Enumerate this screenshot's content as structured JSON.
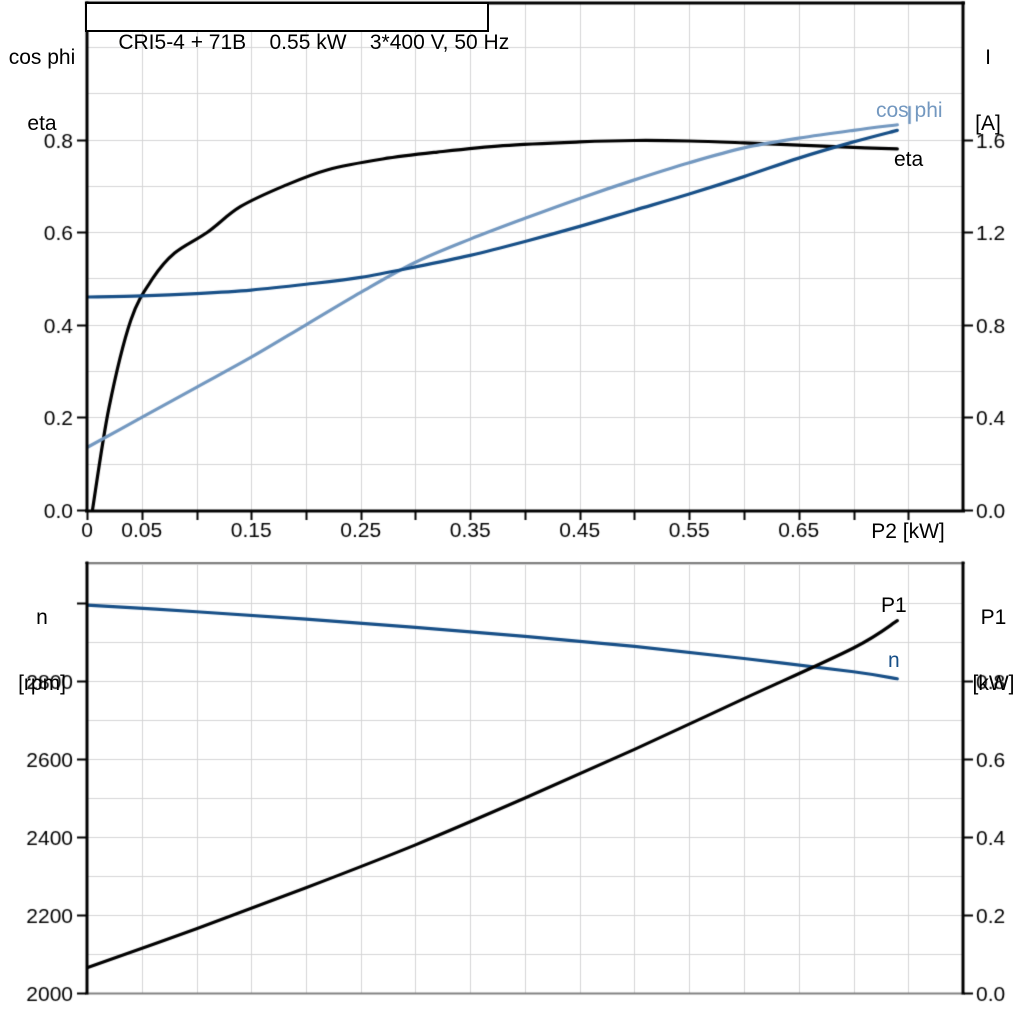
{
  "title_box": {
    "text": "CRI5-4 + 71B    0.55 kW    3*400 V, 50 Hz"
  },
  "colors": {
    "eta_curve": "#000000",
    "cos_phi_curve": "#7398c0",
    "current_curve": "#174f87",
    "n_curve": "#174f87",
    "p1_curve": "#000000",
    "grid": "#d4d4d6",
    "axis_black": "#000000",
    "axis_gray": "#808080",
    "text": "#000000"
  },
  "top_chart": {
    "y_left_title_line1": "cos phi",
    "y_left_title_line2": "eta",
    "y_right_title_line1": "I",
    "y_right_title_line2": "[A]",
    "x_axis_title": "P2 [kW]",
    "x_tick_labels": [
      "0",
      "0.05",
      "0.15",
      "0.25",
      "0.35",
      "0.45",
      "0.55",
      "0.65"
    ],
    "y_left_tick_labels": [
      "0.0",
      "0.2",
      "0.4",
      "0.6",
      "0.8"
    ],
    "y_right_tick_labels": [
      "0.0",
      "0.4",
      "0.8",
      "1.2",
      "1.6"
    ],
    "cos_phi_label": "cos phi",
    "eta_label": "eta"
  },
  "bottom_chart": {
    "y_left_title_line1": "n",
    "y_left_title_line2": "[rpm]",
    "y_right_title_line1": "P1",
    "y_right_title_line2": "[kW]",
    "y_left_tick_labels": [
      "2000",
      "2200",
      "2400",
      "2600",
      "2800"
    ],
    "y_right_tick_labels": [
      "0.0",
      "0.2",
      "0.4",
      "0.6",
      "0.8"
    ],
    "y_left_unlabeled_tick": 3000,
    "p1_label": "P1",
    "n_label": "n"
  },
  "chart_data": [
    {
      "type": "line",
      "title": "CRI5-4 + 71B 0.55 kW 3*400 V, 50 Hz",
      "xlabel": "P2 [kW]",
      "ylabel_left": "cos phi / eta",
      "ylabel_right": "I [A]",
      "xlim": [
        0,
        0.8
      ],
      "ylim_left": [
        0,
        1.095
      ],
      "ylim_right": [
        0,
        2.19
      ],
      "x_grid_step": 0.05,
      "y_grid_step_left": 0.1,
      "grid": true,
      "legend_position": "inline-labels",
      "series": [
        {
          "name": "eta",
          "axis": "left",
          "color_key": "eta_curve",
          "x": [
            0.005,
            0.02,
            0.04,
            0.06,
            0.08,
            0.11,
            0.14,
            0.18,
            0.22,
            0.27,
            0.32,
            0.38,
            0.45,
            0.5,
            0.55,
            0.6,
            0.65,
            0.7,
            0.74
          ],
          "y": [
            0.0,
            0.22,
            0.41,
            0.5,
            0.555,
            0.6,
            0.655,
            0.7,
            0.735,
            0.758,
            0.773,
            0.787,
            0.795,
            0.798,
            0.797,
            0.793,
            0.788,
            0.783,
            0.78
          ]
        },
        {
          "name": "cos phi",
          "axis": "left",
          "color_key": "cos_phi_curve",
          "x": [
            0,
            0.05,
            0.1,
            0.15,
            0.2,
            0.25,
            0.3,
            0.35,
            0.4,
            0.45,
            0.5,
            0.55,
            0.6,
            0.65,
            0.7,
            0.74
          ],
          "y": [
            0.135,
            0.2,
            0.265,
            0.33,
            0.4,
            0.47,
            0.535,
            0.585,
            0.63,
            0.673,
            0.713,
            0.75,
            0.782,
            0.803,
            0.82,
            0.832
          ]
        },
        {
          "name": "I",
          "axis": "right",
          "color_key": "current_curve",
          "x": [
            0,
            0.05,
            0.1,
            0.15,
            0.2,
            0.25,
            0.3,
            0.35,
            0.4,
            0.45,
            0.5,
            0.55,
            0.6,
            0.65,
            0.7,
            0.74
          ],
          "y": [
            0.92,
            0.925,
            0.935,
            0.95,
            0.975,
            1.005,
            1.05,
            1.1,
            1.16,
            1.225,
            1.295,
            1.365,
            1.44,
            1.52,
            1.59,
            1.64
          ]
        }
      ]
    },
    {
      "type": "line",
      "title": "",
      "xlabel": "",
      "ylabel_left": "n [rpm]",
      "ylabel_right": "P1 [kW]",
      "xlim": [
        0,
        0.8
      ],
      "ylim_left": [
        2000,
        3103
      ],
      "ylim_right": [
        0,
        1.103
      ],
      "x_grid_step": 0.05,
      "y_grid_step_left": 100,
      "grid": true,
      "legend_position": "inline-labels",
      "series": [
        {
          "name": "n",
          "axis": "left",
          "color_key": "n_curve",
          "x": [
            0,
            0.1,
            0.2,
            0.3,
            0.4,
            0.5,
            0.6,
            0.7,
            0.74
          ],
          "y": [
            2995,
            2978,
            2959,
            2938,
            2915,
            2889,
            2858,
            2824,
            2806
          ]
        },
        {
          "name": "P1",
          "axis": "right",
          "color_key": "p1_curve",
          "x": [
            0,
            0.1,
            0.2,
            0.3,
            0.4,
            0.5,
            0.6,
            0.7,
            0.74
          ],
          "y": [
            0.065,
            0.165,
            0.27,
            0.38,
            0.5,
            0.625,
            0.755,
            0.885,
            0.955
          ]
        }
      ]
    }
  ]
}
